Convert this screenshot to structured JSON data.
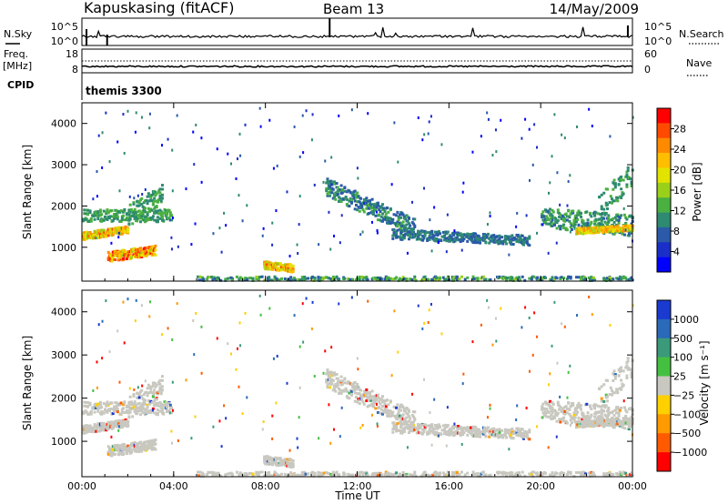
{
  "header": {
    "station": "Kapuskasing (fitACF)",
    "beam": "Beam 13",
    "date": "14/May/2009"
  },
  "colors": {
    "noise_line": "#000000",
    "ground_scatter": "#c8c8c0"
  },
  "chart_data": [
    {
      "type": "line",
      "panel": "noise",
      "left_label": "N.Sky",
      "right_label": "N.Search",
      "left_ticks": [
        "10^5",
        "10^0"
      ],
      "right_ticks": [
        "10^5",
        "10^0"
      ],
      "scale": "log"
    },
    {
      "type": "line",
      "panel": "frequency",
      "left_label": "Freq.",
      "left_unit": "[MHz]",
      "right_label": "Nave",
      "left_ticks": [
        "18",
        "8"
      ],
      "right_ticks": [
        "60",
        "0"
      ]
    },
    {
      "type": "table",
      "panel": "cpid",
      "label": "CPID",
      "value": "themis 3300"
    },
    {
      "type": "heatmap",
      "panel": "power",
      "ylabel": "Slant Range [km]",
      "ylim": [
        180,
        4500
      ],
      "yticks": [
        "1000",
        "2000",
        "3000",
        "4000"
      ],
      "xlim": [
        0,
        24
      ],
      "colorbar_label": "Power [dB]",
      "colorbar_ticks": [
        "28",
        "24",
        "20",
        "16",
        "12",
        "8",
        "4"
      ],
      "colorbar_colors": [
        "#ff0000",
        "#ff4a00",
        "#ff8a00",
        "#ffbe00",
        "#e3e300",
        "#9ad01a",
        "#4ab040",
        "#2e8a70",
        "#2a5aa8",
        "#1a2ec8",
        "#0000ff"
      ],
      "regions": [
        {
          "t": [
            0.0,
            3.9
          ],
          "r": [
            1800,
            1800
          ],
          "density": 0.55,
          "level": [
            0.25,
            0.45
          ]
        },
        {
          "t": [
            0.0,
            2.0
          ],
          "r": [
            1300,
            1450
          ],
          "density": 0.9,
          "level": [
            0.45,
            0.9
          ],
          "dr": 90
        },
        {
          "t": [
            1.1,
            3.2
          ],
          "r": [
            800,
            950
          ],
          "density": 0.95,
          "level": [
            0.5,
            1.0
          ],
          "dr": 120
        },
        {
          "t": [
            2.0,
            3.5
          ],
          "r": [
            1800,
            2300
          ],
          "density": 0.55,
          "level": [
            0.25,
            0.45
          ],
          "dr": 250
        },
        {
          "t": [
            7.9,
            9.2
          ],
          "r": [
            600,
            520
          ],
          "density": 0.9,
          "level": [
            0.45,
            0.9
          ],
          "dr": 90
        },
        {
          "t": [
            10.6,
            14.5
          ],
          "r": [
            2500,
            1500
          ],
          "density": 0.7,
          "level": [
            0.15,
            0.4
          ],
          "dr": 220
        },
        {
          "t": [
            13.5,
            19.5
          ],
          "r": [
            1350,
            1200
          ],
          "density": 0.55,
          "level": [
            0.15,
            0.35
          ],
          "dr": 120
        },
        {
          "t": [
            20.0,
            24.0
          ],
          "r": [
            1750,
            1550
          ],
          "density": 0.7,
          "level": [
            0.2,
            0.45
          ],
          "dr": 250
        },
        {
          "t": [
            21.5,
            24.0
          ],
          "r": [
            1420,
            1500
          ],
          "density": 0.85,
          "level": [
            0.45,
            0.85
          ],
          "dr": 70
        },
        {
          "t": [
            22.5,
            24.0
          ],
          "r": [
            2000,
            2800
          ],
          "density": 0.45,
          "level": [
            0.25,
            0.4
          ],
          "dr": 300
        },
        {
          "t": [
            5.0,
            24.0
          ],
          "r": [
            230,
            230
          ],
          "density": 0.35,
          "level": [
            0.15,
            0.5
          ],
          "dr": 90
        }
      ]
    },
    {
      "type": "heatmap",
      "panel": "velocity",
      "ylabel": "Slant Range [km]",
      "ylim": [
        180,
        4500
      ],
      "yticks": [
        "1000",
        "2000",
        "3000",
        "4000"
      ],
      "xlim": [
        0,
        24
      ],
      "colorbar_label": "Velocity [m s⁻¹]",
      "colorbar_ticks": [
        "1000",
        "500",
        "100",
        "25",
        "−25",
        "−100",
        "−500",
        "−1000"
      ],
      "colorbar_colors": [
        "#1a3ad0",
        "#2a6ab8",
        "#3a9a7a",
        "#44c040",
        "#c8c8c0",
        "#ffd000",
        "#ff9a00",
        "#ff5a00",
        "#ff0000"
      ]
    }
  ],
  "x_axis": {
    "label": "Time UT",
    "ticks": [
      "00:00",
      "04:00",
      "08:00",
      "12:00",
      "16:00",
      "20:00",
      "00:00"
    ]
  }
}
